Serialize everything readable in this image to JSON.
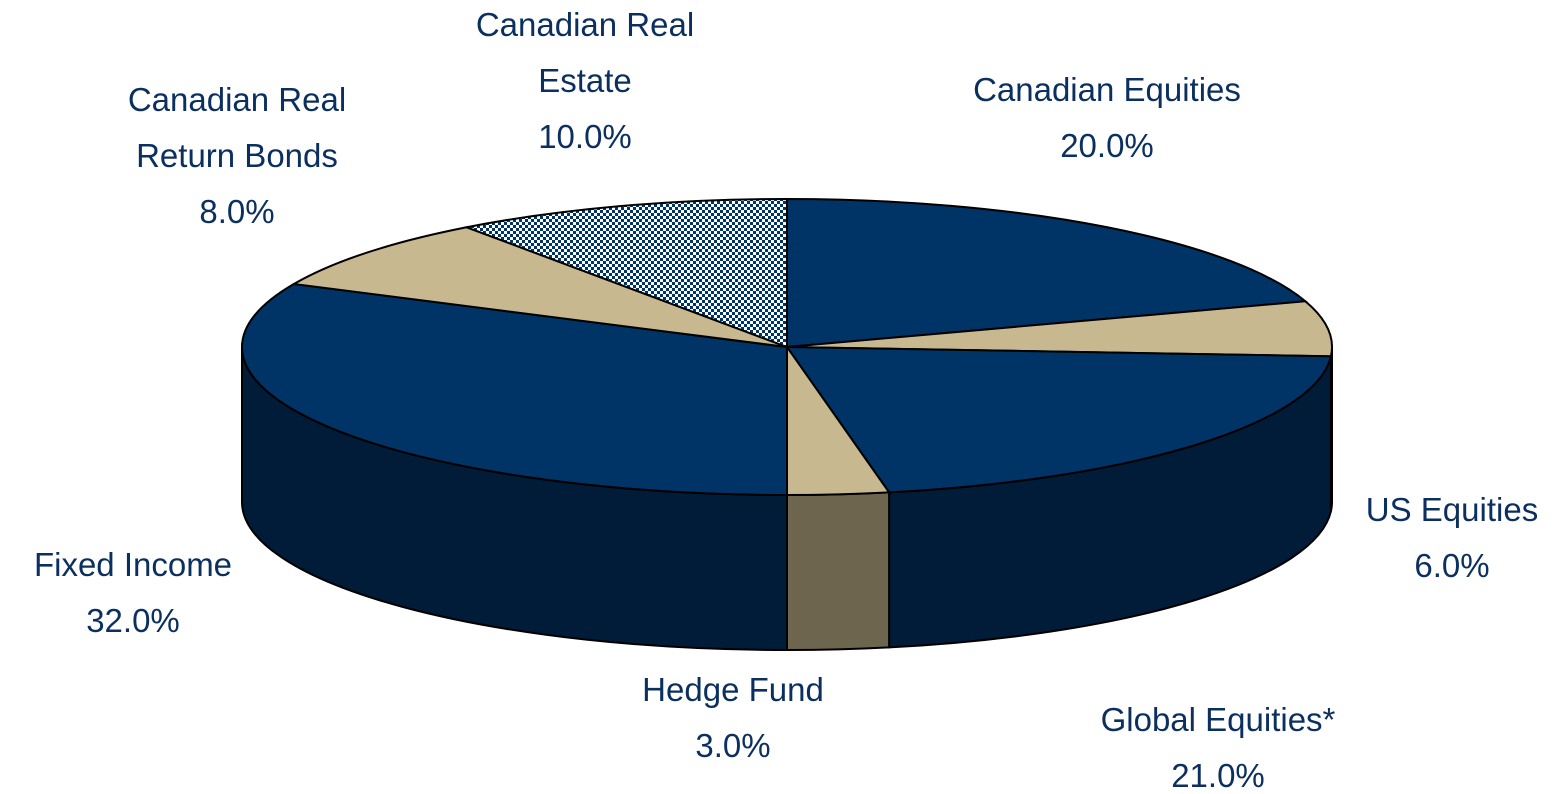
{
  "chart_data": {
    "type": "pie3d",
    "categories": [
      "Canadian Equities",
      "US Equities",
      "Global Equities*",
      "Hedge Fund",
      "Fixed Income",
      "Canadian Real Return Bonds",
      "Canadian Real Estate"
    ],
    "values": [
      20,
      6,
      21,
      3,
      32,
      8,
      10
    ],
    "value_labels": [
      "20.0%",
      "6.0%",
      "21.0%",
      "3.0%",
      "32.0%",
      "8.0%",
      "10.0%"
    ],
    "colors": [
      "#003366",
      "#c8b890",
      "#003366",
      "#c8b890",
      "#003366",
      "#c8b890",
      "#003366"
    ],
    "patterned": [
      false,
      false,
      false,
      false,
      false,
      false,
      true
    ]
  }
}
